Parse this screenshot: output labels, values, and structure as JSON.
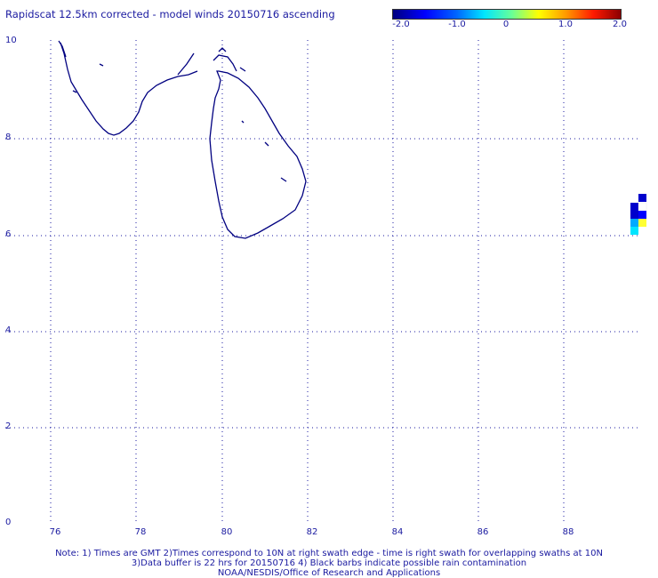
{
  "title": "Rapidscat 12.5km corrected - model winds 20150716 ascending",
  "colorbar": {
    "ticks": [
      "-2.0",
      "-1.0",
      "0",
      "1.0",
      "2.0"
    ]
  },
  "axes": {
    "y_ticks": [
      "10",
      "8",
      "6",
      "4",
      "2",
      "0"
    ],
    "x_ticks": [
      "76",
      "78",
      "80",
      "82",
      "84",
      "86",
      "88"
    ]
  },
  "notes": {
    "line1": "Note: 1) Times are GMT 2)Times correspond to 10N at right swath edge - time is right swath for overlapping swaths at 10N",
    "line2": "3)Data buffer is 22 hrs for 20150716 4) Black barbs indicate possible rain contamination",
    "line3": "NOAA/NESDIS/Office of Research and Applications"
  },
  "colors": {
    "coast": "#000080",
    "text": "#1a1aa0"
  }
}
